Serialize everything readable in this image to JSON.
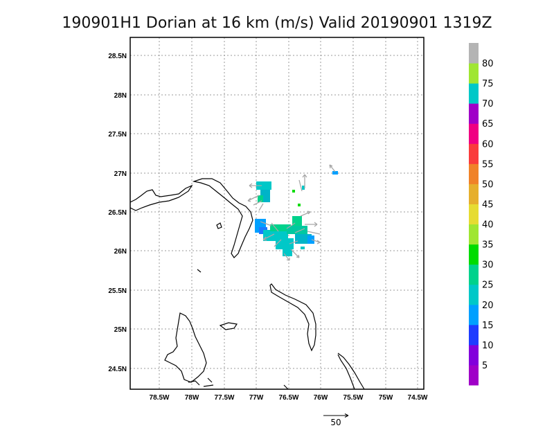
{
  "title": "190901H1 Dorian at 16 km (m/s) Valid 20190901  1319Z",
  "map": {
    "lat_labels": [
      "28.5N",
      "28N",
      "27.5N",
      "27N",
      "26.5N",
      "26N",
      "25.5N",
      "25N",
      "24.5N"
    ],
    "lon_labels": [
      "78.5W",
      "78W",
      "77.5W",
      "77W",
      "76.5W",
      "76W",
      "75.5W",
      "75W",
      "74.5W"
    ],
    "grid": true
  },
  "colorbar": {
    "labels": [
      "5",
      "10",
      "15",
      "20",
      "25",
      "30",
      "35",
      "40",
      "45",
      "50",
      "55",
      "60",
      "65",
      "70",
      "75",
      "80"
    ],
    "colors": [
      "#a000c8",
      "#8200dc",
      "#1e3cff",
      "#00a0ff",
      "#00c8c8",
      "#00d28c",
      "#00dc00",
      "#a0e632",
      "#e6dc32",
      "#e6af2d",
      "#f08228",
      "#fa3c3c",
      "#f00082",
      "#a000c8",
      "#00c8c8",
      "#a0e632",
      "#b4b4b4"
    ]
  },
  "vector_scale": {
    "label": "50"
  }
}
